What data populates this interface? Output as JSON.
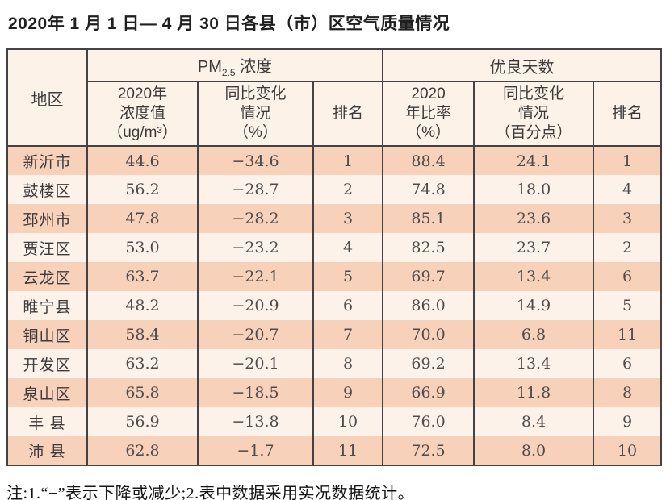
{
  "title": "2020年 1 月 1 日— 4 月 30 日各县（市）区空气质量情况",
  "table": {
    "region_header": "地区",
    "pm25_group": {
      "prefix": "PM",
      "sub": "2.5",
      "suffix": " 浓度"
    },
    "good_days_group": "优良天数",
    "sub_headers": {
      "pm_value": "2020年\n浓度值\n（ug/m³）",
      "pm_change": "同比变化\n情况\n（%）",
      "pm_rank": "排名",
      "good_rate": "2020\n年比率\n（%）",
      "good_change": "同比变化\n情况\n（百分点）",
      "good_rank": "排名"
    },
    "rows": [
      {
        "region": "新沂市",
        "pm_value": "44.6",
        "pm_change": "−34.6",
        "pm_rank": "1",
        "good_rate": "88.4",
        "good_change": "24.1",
        "good_rank": "1"
      },
      {
        "region": "鼓楼区",
        "pm_value": "56.2",
        "pm_change": "−28.7",
        "pm_rank": "2",
        "good_rate": "74.8",
        "good_change": "18.0",
        "good_rank": "4"
      },
      {
        "region": "邳州市",
        "pm_value": "47.8",
        "pm_change": "−28.2",
        "pm_rank": "3",
        "good_rate": "85.1",
        "good_change": "23.6",
        "good_rank": "3"
      },
      {
        "region": "贾汪区",
        "pm_value": "53.0",
        "pm_change": "−23.2",
        "pm_rank": "4",
        "good_rate": "82.5",
        "good_change": "23.7",
        "good_rank": "2"
      },
      {
        "region": "云龙区",
        "pm_value": "63.7",
        "pm_change": "−22.1",
        "pm_rank": "5",
        "good_rate": "69.7",
        "good_change": "13.4",
        "good_rank": "6"
      },
      {
        "region": "睢宁县",
        "pm_value": "48.2",
        "pm_change": "−20.9",
        "pm_rank": "6",
        "good_rate": "86.0",
        "good_change": "14.9",
        "good_rank": "5"
      },
      {
        "region": "铜山区",
        "pm_value": "58.4",
        "pm_change": "−20.7",
        "pm_rank": "7",
        "good_rate": "70.0",
        "good_change": "6.8",
        "good_rank": "11"
      },
      {
        "region": "开发区",
        "pm_value": "63.2",
        "pm_change": "−20.1",
        "pm_rank": "8",
        "good_rate": "69.2",
        "good_change": "13.4",
        "good_rank": "6"
      },
      {
        "region": "泉山区",
        "pm_value": "65.8",
        "pm_change": "−18.5",
        "pm_rank": "9",
        "good_rate": "66.9",
        "good_change": "11.8",
        "good_rank": "8"
      },
      {
        "region": "丰 县",
        "pm_value": "56.9",
        "pm_change": "−13.8",
        "pm_rank": "10",
        "good_rate": "76.0",
        "good_change": "8.4",
        "good_rank": "9"
      },
      {
        "region": "沛 县",
        "pm_value": "62.8",
        "pm_change": "−1.7",
        "pm_rank": "11",
        "good_rate": "72.5",
        "good_change": "8.0",
        "good_rank": "10"
      }
    ]
  },
  "footnote": "注:1.“−”表示下降或减少;2.表中数据采用实况数据统计。",
  "colors": {
    "row_shaded": "#f8d1bb",
    "row_plain": "#fdf2ea",
    "header_bg": "#fcf2e7",
    "border": "#454243"
  }
}
